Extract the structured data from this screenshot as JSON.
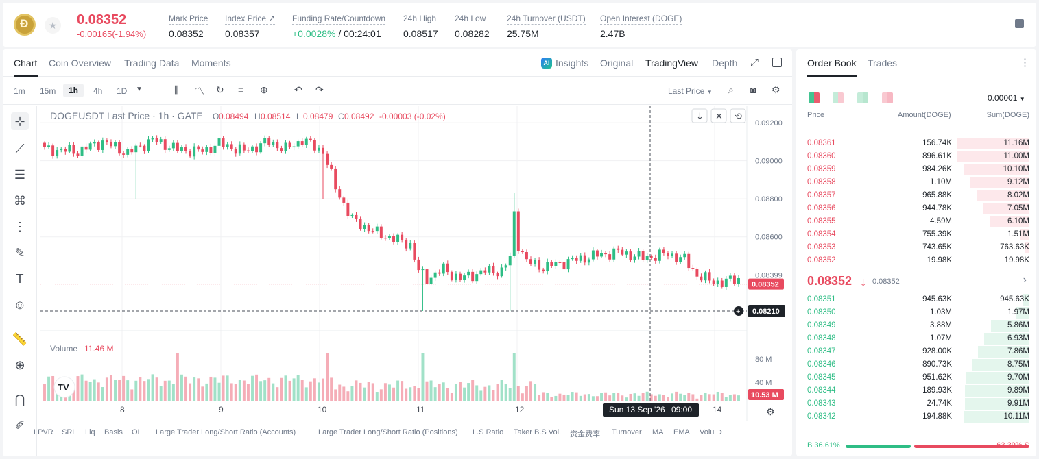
{
  "ticker": {
    "last_price": "0.08352",
    "change": "-0.00165(-1.94%)",
    "stats": [
      {
        "label": "Mark Price",
        "value": "0.08352"
      },
      {
        "label": "Index Price ↗",
        "value": "0.08357"
      },
      {
        "label": "Funding Rate/Countdown",
        "value_green": "+0.0028%",
        "value": "/ 00:24:01"
      },
      {
        "label": "24h High",
        "value": "0.08517"
      },
      {
        "label": "24h Low",
        "value": "0.08282"
      },
      {
        "label": "24h Turnover (USDT)",
        "value": "25.75M"
      },
      {
        "label": "Open Interest (DOGE)",
        "value": "2.47B"
      }
    ]
  },
  "chart_tabs": {
    "main": [
      "Chart",
      "Coin Overview",
      "Trading Data",
      "Moments"
    ],
    "views": [
      "Insights",
      "Original",
      "TradingView",
      "Depth"
    ],
    "ai_badge": "AI"
  },
  "intervals": [
    "1m",
    "15m",
    "1h",
    "4h",
    "1D"
  ],
  "price_type": "Last Price",
  "legend": {
    "symbol": "DOGEUSDT Last Price · 1h · GATE",
    "o_label": "O",
    "o": "0.08494",
    "h_label": "H",
    "h": "0.08514",
    "l_label": "L",
    "l": "0.08479",
    "c_label": "C",
    "c": "0.08492",
    "chg": "-0.00003 (-0.02%)"
  },
  "volume_legend": {
    "label": "Volume",
    "value": "11.46 M"
  },
  "crosshair": {
    "date": "Sun 13 Sep '26",
    "time": "09:00"
  },
  "bottom_indicators": [
    "LPVR",
    "SRL",
    "Liq",
    "Basis",
    "OI",
    "Large Trader Long/Short Ratio (Accounts)",
    "Large Trader Long/Short Ratio (Positions)",
    "L.S Ratio",
    "Taker B.S Vol.",
    "资金费率",
    "Turnover",
    "MA",
    "EMA",
    "Volu"
  ],
  "chart_data": {
    "type": "candlestick",
    "y_ticks": [
      "0.09200",
      "0.09000",
      "0.08800",
      "0.08600",
      "0.08399"
    ],
    "ylim": [
      0.0821,
      0.0924
    ],
    "x_ticks": [
      "8",
      "9",
      "10",
      "11",
      "12",
      "14"
    ],
    "last_price_tag": "0.08352",
    "crosshair_price_tag": "0.08210",
    "volume_ticks": [
      "80 M",
      "40 M"
    ],
    "volume_tag": "10.53 M",
    "anchors": [
      [
        0,
        0.0906
      ],
      [
        8,
        0.0905
      ],
      [
        14,
        0.091
      ],
      [
        20,
        0.0904
      ],
      [
        26,
        0.0911
      ],
      [
        32,
        0.0906
      ],
      [
        38,
        0.0905
      ],
      [
        42,
        0.0909
      ],
      [
        48,
        0.0905
      ],
      [
        54,
        0.091
      ],
      [
        58,
        0.0906
      ],
      [
        62,
        0.0911
      ],
      [
        67,
        0.0905
      ],
      [
        70,
        0.0886
      ],
      [
        74,
        0.0869
      ],
      [
        80,
        0.0862
      ],
      [
        84,
        0.0859
      ],
      [
        88,
        0.0856
      ],
      [
        90,
        0.0842
      ],
      [
        92,
        0.0838
      ],
      [
        96,
        0.0843
      ],
      [
        100,
        0.0838
      ],
      [
        106,
        0.0842
      ],
      [
        110,
        0.0842
      ],
      [
        112,
        0.0849
      ],
      [
        113,
        0.0872
      ],
      [
        114,
        0.0856
      ],
      [
        116,
        0.0847
      ],
      [
        120,
        0.0844
      ],
      [
        126,
        0.0847
      ],
      [
        132,
        0.085
      ],
      [
        138,
        0.0852
      ],
      [
        144,
        0.0849
      ],
      [
        150,
        0.0851
      ],
      [
        154,
        0.0848
      ],
      [
        157,
        0.084
      ],
      [
        160,
        0.0837
      ],
      [
        163,
        0.0836
      ],
      [
        167,
        0.0838
      ]
    ],
    "spikes": [
      {
        "i": 22,
        "low": 0.088
      },
      {
        "i": 67,
        "low": 0.088
      },
      {
        "i": 91,
        "low": 0.0821
      },
      {
        "i": 112,
        "low": 0.0821
      },
      {
        "i": 113,
        "high": 0.0883
      }
    ]
  },
  "orderbook": {
    "tabs": [
      "Order Book",
      "Trades"
    ],
    "precision": "0.00001",
    "headers": {
      "price": "Price",
      "amount": "Amount(DOGE)",
      "sum": "Sum(DOGE)"
    },
    "asks": [
      {
        "price": "0.08361",
        "amount": "156.74K",
        "sum": "11.16M",
        "depth": 1.0
      },
      {
        "price": "0.08360",
        "amount": "896.61K",
        "sum": "11.00M",
        "depth": 0.986
      },
      {
        "price": "0.08359",
        "amount": "984.26K",
        "sum": "10.10M",
        "depth": 0.905
      },
      {
        "price": "0.08358",
        "amount": "1.10M",
        "sum": "9.12M",
        "depth": 0.817
      },
      {
        "price": "0.08357",
        "amount": "965.88K",
        "sum": "8.02M",
        "depth": 0.719
      },
      {
        "price": "0.08356",
        "amount": "944.78K",
        "sum": "7.05M",
        "depth": 0.632
      },
      {
        "price": "0.08355",
        "amount": "4.59M",
        "sum": "6.10M",
        "depth": 0.547
      },
      {
        "price": "0.08354",
        "amount": "755.39K",
        "sum": "1.51M",
        "depth": 0.135
      },
      {
        "price": "0.08353",
        "amount": "743.65K",
        "sum": "763.63K",
        "depth": 0.068
      },
      {
        "price": "0.08352",
        "amount": "19.98K",
        "sum": "19.98K",
        "depth": 0.005
      }
    ],
    "mid": {
      "price": "0.08352",
      "arrow": "🡓",
      "mark": "0.08352"
    },
    "bids": [
      {
        "price": "0.08351",
        "amount": "945.63K",
        "sum": "945.63K",
        "depth": 0.085
      },
      {
        "price": "0.08350",
        "amount": "1.03M",
        "sum": "1.97M",
        "depth": 0.176
      },
      {
        "price": "0.08349",
        "amount": "3.88M",
        "sum": "5.86M",
        "depth": 0.525
      },
      {
        "price": "0.08348",
        "amount": "1.07M",
        "sum": "6.93M",
        "depth": 0.621
      },
      {
        "price": "0.08347",
        "amount": "928.00K",
        "sum": "7.86M",
        "depth": 0.704
      },
      {
        "price": "0.08346",
        "amount": "890.73K",
        "sum": "8.75M",
        "depth": 0.784
      },
      {
        "price": "0.08345",
        "amount": "951.62K",
        "sum": "9.70M",
        "depth": 0.869
      },
      {
        "price": "0.08344",
        "amount": "189.93K",
        "sum": "9.89M",
        "depth": 0.886
      },
      {
        "price": "0.08343",
        "amount": "24.74K",
        "sum": "9.91M",
        "depth": 0.888
      },
      {
        "price": "0.08342",
        "amount": "194.88K",
        "sum": "10.11M",
        "depth": 0.906
      }
    ],
    "buy_label": "B",
    "buy_pct": "36.61%",
    "buy_ratio": 0.3661,
    "sell_label": "S",
    "sell_pct": "63.39%",
    "colors": {
      "up": "#2ebd85",
      "down": "#e84a5f"
    }
  }
}
